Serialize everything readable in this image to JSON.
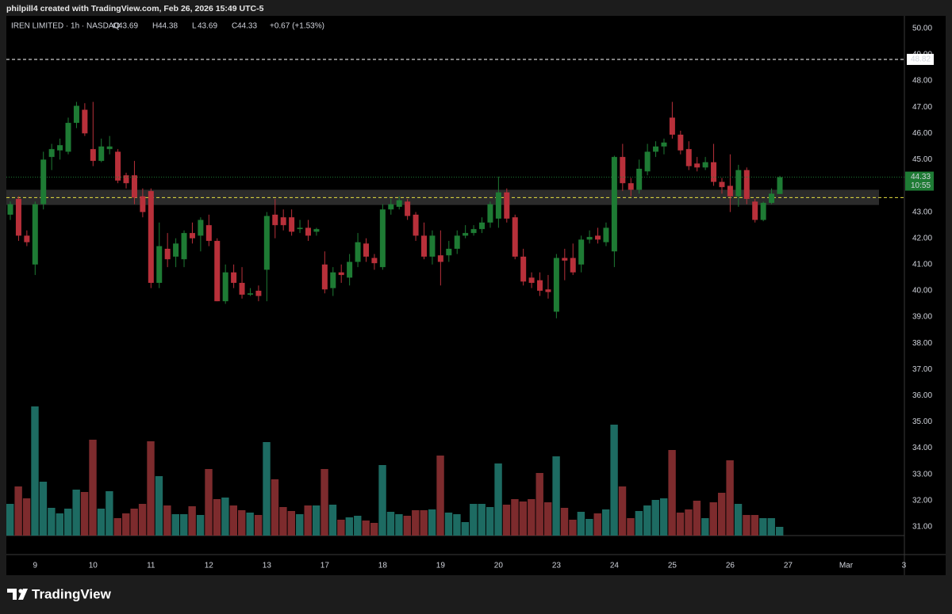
{
  "header": {
    "credit": "philpill4 created with TradingView.com, Feb 26, 2026 15:49 UTC-5",
    "brand": "TradingView"
  },
  "chart_data": {
    "type": "candlestick",
    "symbol": "IREN LIMITED · 1h · NASDAQ",
    "legend_keys": [
      "O",
      "H",
      "L",
      "C"
    ],
    "change_label": "+0.67 (+1.53%)",
    "countdown": "10:55",
    "up_color": "#1e7b34",
    "down_color": "#b8303a",
    "volume_up_color": "#1d6b62",
    "volume_down_color": "#7d2b2d",
    "ylim": [
      29.94,
      50.48
    ],
    "yticks": [
      {
        "value": 31,
        "label": "31.00"
      },
      {
        "value": 32,
        "label": "32.00"
      },
      {
        "value": 33,
        "label": "33.00"
      },
      {
        "value": 34,
        "label": "34.00"
      },
      {
        "value": 35,
        "label": "35.00"
      },
      {
        "value": 36,
        "label": "36.00"
      },
      {
        "value": 37,
        "label": "37.00"
      },
      {
        "value": 38,
        "label": "38.00"
      },
      {
        "value": 39,
        "label": "39.00"
      },
      {
        "value": 40,
        "label": "40.00"
      },
      {
        "value": 41,
        "label": "41.00"
      },
      {
        "value": 42,
        "label": "42.00"
      },
      {
        "value": 43,
        "label": "43.00"
      },
      {
        "value": 44,
        "label": "44.00"
      },
      {
        "value": 45,
        "label": "45.00"
      },
      {
        "value": 46,
        "label": "46.00"
      },
      {
        "value": 47,
        "label": "47.00"
      },
      {
        "value": 48,
        "label": "48.00"
      },
      {
        "value": 49,
        "label": "49.00"
      },
      {
        "value": 50,
        "label": "50.00"
      }
    ],
    "levels": [
      {
        "value": 48.82,
        "color": "#ffffff",
        "labeled": true
      },
      {
        "value": 43.55,
        "color": "#e8e040",
        "labeled": false
      }
    ],
    "zone": [
      43.27,
      43.85
    ],
    "days": [
      {
        "label": null,
        "open": [
          42.9,
          43.5,
          42.1
        ],
        "high": [
          43.4,
          43.6,
          42.3
        ],
        "low": [
          42.7,
          41.9,
          41.7
        ],
        "close": [
          43.3,
          42.1,
          41.85
        ],
        "volume": [
          40,
          62,
          47
        ]
      },
      {
        "label": "9",
        "open": [
          41.0,
          43.3,
          45.1,
          45.35,
          45.3,
          46.4,
          46.9
        ],
        "high": [
          43.4,
          45.3,
          45.6,
          45.8,
          46.6,
          47.2,
          47.15
        ],
        "low": [
          40.6,
          43.1,
          44.6,
          45.0,
          45.2,
          46.2,
          45.9
        ],
        "close": [
          43.3,
          45.0,
          45.4,
          45.55,
          46.4,
          47.05,
          46.0
        ],
        "volume": [
          163,
          68,
          35,
          28,
          34,
          58,
          55
        ]
      },
      {
        "label": "10",
        "open": [
          45.4,
          44.95,
          45.4,
          45.3,
          44.4,
          44.4,
          43.6
        ],
        "high": [
          47.2,
          45.8,
          45.9,
          45.4,
          44.5,
          44.95,
          43.9
        ],
        "low": [
          44.75,
          44.9,
          45.2,
          44.1,
          43.9,
          43.3,
          42.8
        ],
        "close": [
          44.95,
          45.5,
          45.5,
          44.2,
          44.1,
          43.55,
          43.0
        ],
        "volume": [
          121,
          34,
          56,
          22,
          28,
          34,
          40
        ]
      },
      {
        "label": "11",
        "open": [
          43.8,
          40.3,
          41.6,
          41.3,
          41.2,
          42.2,
          42.1
        ],
        "high": [
          43.9,
          42.6,
          42.2,
          42.0,
          42.3,
          42.6,
          42.8
        ],
        "low": [
          40.1,
          40.1,
          40.9,
          40.9,
          40.9,
          41.8,
          41.5
        ],
        "close": [
          40.3,
          41.7,
          41.2,
          41.8,
          42.2,
          42.0,
          42.7
        ],
        "volume": [
          119,
          75,
          38,
          27,
          27,
          37,
          26
        ]
      },
      {
        "label": "12",
        "open": [
          42.5,
          41.9,
          39.6,
          40.7,
          40.3,
          39.85,
          40.0
        ],
        "high": [
          42.9,
          42.0,
          41.0,
          41.0,
          40.9,
          40.1,
          40.2
        ],
        "low": [
          41.7,
          39.6,
          39.5,
          40.1,
          39.7,
          39.8,
          39.6
        ],
        "close": [
          41.9,
          39.6,
          40.7,
          40.3,
          39.85,
          39.9,
          39.8
        ],
        "volume": [
          84,
          46,
          48,
          38,
          32,
          29,
          26
        ]
      },
      {
        "label": "13",
        "open": [
          40.8,
          42.9,
          42.8,
          42.8,
          42.35,
          42.4,
          42.25
        ],
        "high": [
          43.0,
          43.5,
          43.1,
          43.1,
          42.7,
          42.7,
          42.4
        ],
        "low": [
          39.6,
          42.0,
          42.3,
          42.1,
          42.2,
          41.9,
          42.1
        ],
        "close": [
          42.85,
          42.5,
          42.5,
          42.25,
          42.4,
          42.1,
          42.35
        ],
        "volume": [
          118,
          71,
          36,
          31,
          27,
          38,
          38
        ]
      },
      {
        "label": "17",
        "open": [
          41.0,
          40.1,
          40.7,
          40.5,
          41.1,
          41.8,
          41.25
        ],
        "high": [
          41.5,
          40.9,
          41.0,
          41.4,
          42.2,
          42.0,
          41.4
        ],
        "low": [
          39.9,
          39.8,
          40.3,
          40.2,
          40.9,
          41.1,
          40.8
        ],
        "close": [
          40.05,
          40.7,
          40.6,
          41.1,
          41.85,
          41.3,
          41.05
        ],
        "volume": [
          84,
          39,
          20,
          23,
          25,
          19,
          16
        ]
      },
      {
        "label": "18",
        "open": [
          40.9,
          43.1,
          43.2,
          43.4,
          42.9,
          42.1,
          41.3
        ],
        "high": [
          43.3,
          43.5,
          43.6,
          43.5,
          43.0,
          42.6,
          42.3
        ],
        "low": [
          40.8,
          42.9,
          43.1,
          42.7,
          41.9,
          41.2,
          41.0
        ],
        "close": [
          43.1,
          43.3,
          43.45,
          42.85,
          42.1,
          41.3,
          42.1
        ],
        "volume": [
          89,
          30,
          27,
          25,
          32,
          32,
          33
        ]
      },
      {
        "label": "19",
        "open": [
          41.35,
          41.35,
          41.6,
          42.1,
          42.2,
          42.35,
          42.6
        ],
        "high": [
          42.3,
          41.9,
          42.3,
          42.5,
          42.5,
          42.8,
          43.4
        ],
        "low": [
          40.2,
          41.1,
          41.4,
          42.0,
          42.1,
          42.2,
          42.4
        ],
        "close": [
          41.1,
          41.6,
          42.1,
          42.2,
          42.35,
          42.6,
          43.3
        ],
        "volume": [
          101,
          29,
          27,
          17,
          40,
          40,
          36
        ]
      },
      {
        "label": "20",
        "open": [
          42.75,
          43.75,
          42.8,
          41.3,
          40.5,
          40.4,
          40.05
        ],
        "high": [
          44.35,
          43.9,
          42.9,
          41.6,
          40.7,
          40.7,
          40.6
        ],
        "low": [
          42.4,
          42.6,
          41.2,
          40.2,
          40.1,
          39.8,
          39.7
        ],
        "close": [
          43.75,
          42.75,
          41.3,
          40.35,
          40.3,
          40.0,
          39.95
        ],
        "volume": [
          91,
          39,
          46,
          43,
          46,
          79,
          42
        ]
      },
      {
        "label": "23",
        "open": [
          39.2,
          41.25,
          41.25,
          41.0,
          41.95,
          42.1,
          41.85
        ],
        "high": [
          41.4,
          41.6,
          41.8,
          42.1,
          42.3,
          42.4,
          42.6
        ],
        "low": [
          38.95,
          40.4,
          40.6,
          40.7,
          41.8,
          41.8,
          41.7
        ],
        "close": [
          41.25,
          41.15,
          40.7,
          41.95,
          42.05,
          41.95,
          42.4
        ],
        "volume": [
          100,
          35,
          20,
          30,
          21,
          28,
          33
        ]
      },
      {
        "label": "24",
        "open": [
          41.5,
          45.1,
          44.1,
          43.85,
          44.55,
          45.3,
          45.5
        ],
        "high": [
          45.15,
          45.6,
          44.3,
          45.0,
          45.6,
          45.7,
          45.8
        ],
        "low": [
          40.9,
          43.8,
          43.6,
          43.7,
          44.4,
          45.1,
          45.2
        ],
        "close": [
          45.1,
          44.1,
          43.85,
          44.65,
          45.3,
          45.5,
          45.65
        ],
        "volume": [
          140,
          62,
          22,
          31,
          38,
          45,
          47
        ]
      },
      {
        "label": "25",
        "open": [
          46.6,
          45.95,
          45.4,
          44.85,
          44.7,
          44.9,
          44.15
        ],
        "high": [
          47.2,
          46.1,
          45.7,
          45.1,
          45.1,
          45.6,
          44.3
        ],
        "low": [
          45.8,
          45.2,
          44.6,
          44.55,
          44.6,
          44.0,
          43.7
        ],
        "close": [
          45.95,
          45.35,
          44.75,
          44.7,
          44.9,
          44.15,
          43.95
        ],
        "volume": [
          108,
          29,
          33,
          44,
          22,
          42,
          54
        ]
      },
      {
        "label": "26",
        "open": [
          44.0,
          43.6,
          44.6,
          43.4,
          42.7,
          43.35,
          43.69
        ],
        "high": [
          45.2,
          44.8,
          44.7,
          43.5,
          43.4,
          43.9,
          44.38
        ],
        "low": [
          43.0,
          43.2,
          43.3,
          42.6,
          42.65,
          43.3,
          43.69
        ],
        "close": [
          43.6,
          44.6,
          43.5,
          42.7,
          43.35,
          43.7,
          44.33
        ],
        "volume": [
          95,
          40,
          26,
          26,
          22,
          22,
          11
        ]
      },
      {
        "label": "27"
      },
      {
        "label": "Mar"
      },
      {
        "label": "3"
      }
    ]
  }
}
